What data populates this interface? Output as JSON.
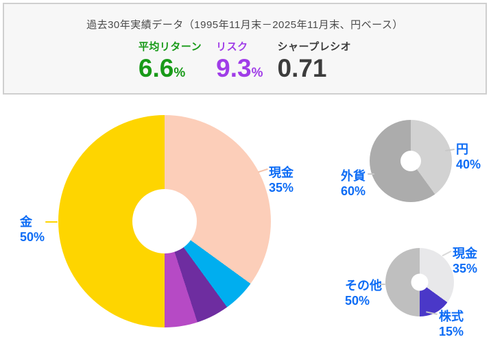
{
  "header": {
    "title": "過去30年実績データ（1995年11月末－2025年11月末、円ベース）",
    "metrics": [
      {
        "label": "平均リターン",
        "value": "6.6",
        "suffix": "%",
        "color": "#189a18"
      },
      {
        "label": "リスク",
        "value": "9.3",
        "suffix": "%",
        "color": "#a03de8"
      },
      {
        "label": "シャープレシオ",
        "value": "0.71",
        "suffix": "",
        "color": "#3c3c3c"
      }
    ]
  },
  "chart_data": [
    {
      "id": "main-allocation",
      "type": "pie",
      "donut": true,
      "start_angle_deg": 0,
      "direction": "clockwise",
      "slices": [
        {
          "label": "現金",
          "value": 35,
          "color": "#fcceb9",
          "label_shown": true
        },
        {
          "label": "",
          "value": 5,
          "color": "#00aeef",
          "label_shown": false
        },
        {
          "label": "",
          "value": 5,
          "color": "#6e2da0",
          "label_shown": false
        },
        {
          "label": "",
          "value": 5,
          "color": "#b64ac5",
          "label_shown": false
        },
        {
          "label": "金",
          "value": 50,
          "color": "#fed500",
          "label_shown": true
        }
      ]
    },
    {
      "id": "currency-split",
      "type": "pie",
      "donut": true,
      "start_angle_deg": 0,
      "direction": "clockwise",
      "slices": [
        {
          "label": "円",
          "value": 40,
          "color": "#d2d2d2",
          "label_shown": true
        },
        {
          "label": "外貨",
          "value": 60,
          "color": "#acacac",
          "label_shown": true
        }
      ]
    },
    {
      "id": "asset-class-split",
      "type": "pie",
      "donut": true,
      "start_angle_deg": 0,
      "direction": "clockwise",
      "slices": [
        {
          "label": "現金",
          "value": 35,
          "color": "#e8e8ea",
          "label_shown": true
        },
        {
          "label": "株式",
          "value": 15,
          "color": "#4a38c8",
          "label_shown": true
        },
        {
          "label": "その他",
          "value": 50,
          "color": "#bfbfbf",
          "label_shown": true
        }
      ]
    }
  ],
  "callouts": {
    "main_cash": {
      "name": "現金",
      "pct": "35%"
    },
    "main_gold": {
      "name": "金",
      "pct": "50%"
    },
    "currency_yen": {
      "name": "円",
      "pct": "40%"
    },
    "currency_foreign": {
      "name": "外貨",
      "pct": "60%"
    },
    "asset_cash": {
      "name": "現金",
      "pct": "35%"
    },
    "asset_equity": {
      "name": "株式",
      "pct": "15%"
    },
    "asset_other": {
      "name": "その他",
      "pct": "50%"
    }
  },
  "colors": {
    "callout_text": "#0d6cf5",
    "panel_background": "#f7f7f7",
    "panel_border": "#cfcfcf"
  }
}
